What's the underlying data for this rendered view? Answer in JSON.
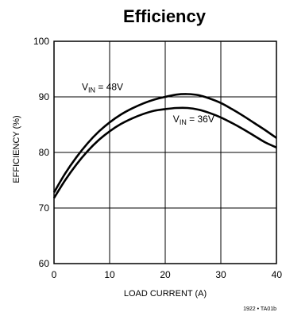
{
  "chart_data": {
    "type": "line",
    "title": "Efficiency",
    "xlabel": "LOAD CURRENT (A)",
    "ylabel": "EFFICIENCY (%)",
    "xlim": [
      0,
      40
    ],
    "ylim": [
      60,
      100
    ],
    "xticks": [
      "0",
      "10",
      "20",
      "30",
      "40"
    ],
    "yticks": [
      "60",
      "70",
      "80",
      "90",
      "100"
    ],
    "grid": true,
    "series": [
      {
        "name": "V_IN = 48V",
        "label_main": "V",
        "label_sub": "IN",
        "label_rest": " = 48V",
        "x": [
          0,
          2,
          4,
          6,
          8,
          10,
          12,
          14,
          16,
          18,
          20,
          22,
          24,
          26,
          28,
          30,
          32,
          34,
          36,
          38,
          40
        ],
        "y": [
          72.8,
          76.2,
          79.1,
          81.6,
          83.7,
          85.4,
          86.8,
          87.9,
          88.8,
          89.5,
          90.0,
          90.4,
          90.5,
          90.3,
          89.7,
          88.9,
          87.8,
          86.6,
          85.3,
          84.0,
          82.6
        ]
      },
      {
        "name": "V_IN = 36V",
        "label_main": "V",
        "label_sub": "IN",
        "label_rest": " = 36V",
        "x": [
          0,
          2,
          4,
          6,
          8,
          10,
          12,
          14,
          16,
          18,
          20,
          22,
          24,
          26,
          28,
          30,
          32,
          34,
          36,
          38,
          40
        ],
        "y": [
          71.8,
          75.0,
          77.8,
          80.2,
          82.2,
          83.8,
          85.1,
          86.1,
          86.9,
          87.5,
          87.8,
          88.0,
          88.0,
          87.7,
          87.1,
          86.3,
          85.3,
          84.2,
          83.0,
          81.8,
          80.9
        ]
      }
    ],
    "footnote": "1922 • TA01b"
  }
}
